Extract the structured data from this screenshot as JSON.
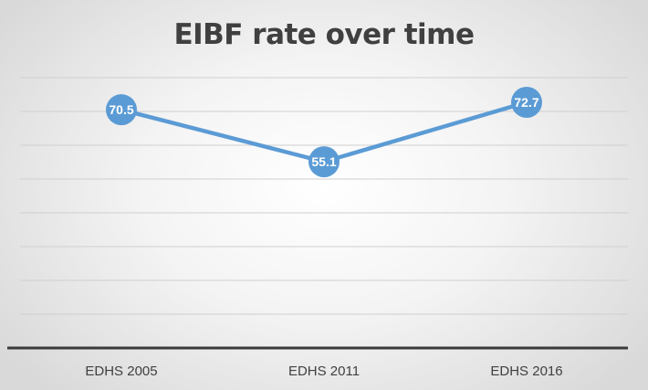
{
  "chart_data": {
    "type": "line",
    "title": "EIBF rate over time",
    "categories": [
      "EDHS 2005",
      "EDHS 2011",
      "EDHS 2016"
    ],
    "values": [
      70.5,
      55.1,
      72.7
    ],
    "data_labels": [
      "70.5",
      "55.1",
      "72.7"
    ],
    "xlabel": "",
    "ylabel": "",
    "ylim": [
      0,
      80
    ],
    "grid": true,
    "legend": "none",
    "colors": {
      "series": "#5b9bd5",
      "gridline": "#cfcfcf",
      "axis": "#3a3a3a",
      "title": "#404040",
      "tick_label": "#404040"
    }
  }
}
